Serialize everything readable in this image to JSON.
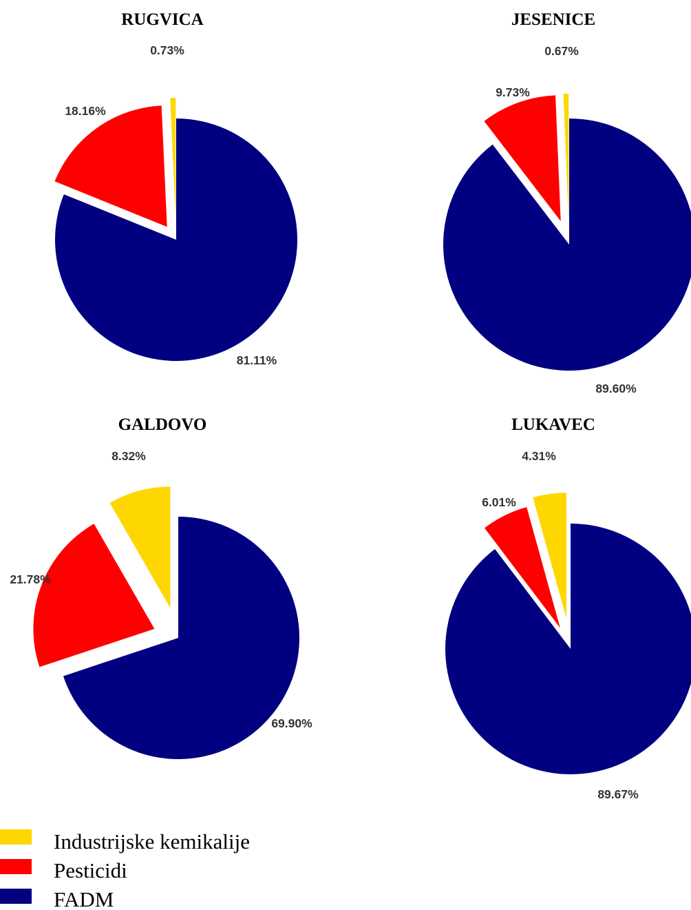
{
  "chart_data": [
    {
      "type": "pie",
      "title": "RUGVICA",
      "slices": [
        {
          "label": "Industrijske kemikalije",
          "value": 0.73,
          "display": "0.73%",
          "color": "#ffd700"
        },
        {
          "label": "Pesticidi",
          "value": 18.16,
          "display": "18.16%",
          "color": "#ff0000"
        },
        {
          "label": "FADM",
          "value": 81.11,
          "display": "81.11%",
          "color": "#000080"
        }
      ]
    },
    {
      "type": "pie",
      "title": "JESENICE",
      "slices": [
        {
          "label": "Industrijske kemikalije",
          "value": 0.67,
          "display": "0.67%",
          "color": "#ffd700"
        },
        {
          "label": "Pesticidi",
          "value": 9.73,
          "display": "9.73%",
          "color": "#ff0000"
        },
        {
          "label": "FADM",
          "value": 89.6,
          "display": "89.60%",
          "color": "#000080"
        }
      ]
    },
    {
      "type": "pie",
      "title": "GALDOVO",
      "slices": [
        {
          "label": "Industrijske kemikalije",
          "value": 8.32,
          "display": "8.32%",
          "color": "#ffd700"
        },
        {
          "label": "Pesticidi",
          "value": 21.78,
          "display": "21.78%",
          "color": "#ff0000"
        },
        {
          "label": "FADM",
          "value": 69.9,
          "display": "69.90%",
          "color": "#000080"
        }
      ]
    },
    {
      "type": "pie",
      "title": "LUKAVEC",
      "slices": [
        {
          "label": "Industrijske kemikalije",
          "value": 4.31,
          "display": "4.31%",
          "color": "#ffd700"
        },
        {
          "label": "Pesticidi",
          "value": 6.01,
          "display": "6.01%",
          "color": "#ff0000"
        },
        {
          "label": "FADM",
          "value": 89.67,
          "display": "89.67%",
          "color": "#000080"
        }
      ]
    }
  ],
  "legend": {
    "placement": "bottom-left",
    "entries": [
      {
        "label": "Industrijske kemikalije",
        "color": "#ffd700"
      },
      {
        "label": "Pesticidi",
        "color": "#ff0000"
      },
      {
        "label": "FADM",
        "color": "#000080"
      }
    ]
  }
}
